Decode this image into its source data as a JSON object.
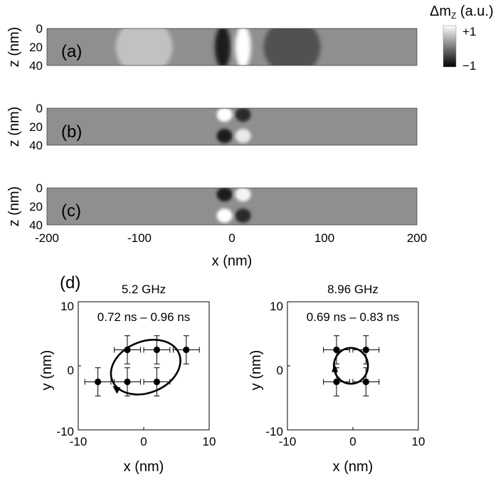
{
  "chart_data": [
    {
      "type": "heatmap",
      "panel_label": "(a)",
      "xlabel": "",
      "ylabel": "z (nm)",
      "xlim": [
        -200,
        200
      ],
      "ylim": [
        0,
        40
      ],
      "y_ticks": [
        "0",
        "20",
        "40"
      ],
      "colorbar": {
        "label": "Δm",
        "sub": "Z",
        "unit": " (a.u.)",
        "max_label": "+1",
        "min_label": "−1",
        "range": [
          -1,
          1
        ]
      },
      "features": [
        {
          "x": -95,
          "z": 20,
          "value": 0.45,
          "desc": "diffuse bright lobe"
        },
        {
          "x": -10,
          "z": 20,
          "value": -1.0,
          "desc": "dark band"
        },
        {
          "x": 12,
          "z": 20,
          "value": 1.0,
          "desc": "bright band"
        },
        {
          "x": 65,
          "z": 20,
          "value": -0.55,
          "desc": "diffuse dark lobe"
        }
      ]
    },
    {
      "type": "heatmap",
      "panel_label": "(b)",
      "xlabel": "",
      "ylabel": "z (nm)",
      "xlim": [
        -200,
        200
      ],
      "ylim": [
        0,
        40
      ],
      "y_ticks": [
        "0",
        "20",
        "40"
      ],
      "features": [
        {
          "x": -8,
          "z": 7,
          "value": 1.0
        },
        {
          "x": 12,
          "z": 7,
          "value": -0.9
        },
        {
          "x": -8,
          "z": 30,
          "value": -1.0
        },
        {
          "x": 12,
          "z": 30,
          "value": 0.8
        }
      ]
    },
    {
      "type": "heatmap",
      "panel_label": "(c)",
      "xlabel": "x (nm)",
      "ylabel": "z (nm)",
      "xlim": [
        -200,
        200
      ],
      "ylim": [
        0,
        40
      ],
      "x_ticks": [
        "-200",
        "-100",
        "0",
        "100",
        "200"
      ],
      "y_ticks": [
        "0",
        "20",
        "40"
      ],
      "features": [
        {
          "x": -8,
          "z": 7,
          "value": -1.0
        },
        {
          "x": 12,
          "z": 7,
          "value": 0.9
        },
        {
          "x": -8,
          "z": 30,
          "value": 1.0
        },
        {
          "x": 12,
          "z": 30,
          "value": -0.9
        }
      ]
    },
    {
      "type": "scatter",
      "panel_label": "(d)",
      "title": "5.2 GHz",
      "annotation": "0.72 ns – 0.96 ns",
      "xlabel": "x (nm)",
      "ylabel": "y (nm)",
      "xlim": [
        -10,
        10
      ],
      "ylim": [
        -10,
        10
      ],
      "x_ticks": [
        "-10",
        "0",
        "10"
      ],
      "y_ticks": [
        "-10",
        "0",
        "10"
      ],
      "x_err": 2,
      "y_err": 2.2,
      "points": [
        {
          "x": -7,
          "y": -2.5
        },
        {
          "x": -2.5,
          "y": -2.5
        },
        {
          "x": 2,
          "y": -2.5
        },
        {
          "x": -2.5,
          "y": 2.5
        },
        {
          "x": 2,
          "y": 2.5
        },
        {
          "x": 6.5,
          "y": 2.5
        }
      ],
      "ellipse": {
        "cx": 0.3,
        "cy": -0.2,
        "rx": 5.5,
        "ry": 4.0,
        "rotation_deg": -22
      },
      "arrow": {
        "x": -4.2,
        "y": -3.6
      }
    },
    {
      "type": "scatter",
      "title": "8.96 GHz",
      "annotation": "0.69 ns – 0.83 ns",
      "xlabel": "x (nm)",
      "ylabel": "y (nm)",
      "xlim": [
        -10,
        10
      ],
      "ylim": [
        -10,
        10
      ],
      "x_ticks": [
        "-10",
        "0",
        "10"
      ],
      "y_ticks": [
        "-10",
        "0",
        "10"
      ],
      "x_err": 2,
      "y_err": 2.2,
      "points": [
        {
          "x": -2.5,
          "y": 2.5
        },
        {
          "x": 2,
          "y": 2.5
        },
        {
          "x": -2.5,
          "y": -2.5
        },
        {
          "x": 2,
          "y": -2.5
        }
      ],
      "ellipse": {
        "cx": -0.3,
        "cy": 0,
        "rx": 2.6,
        "ry": 2.8,
        "rotation_deg": 0
      },
      "arrow": {
        "x": -2.7,
        "y": -0.4
      }
    }
  ]
}
